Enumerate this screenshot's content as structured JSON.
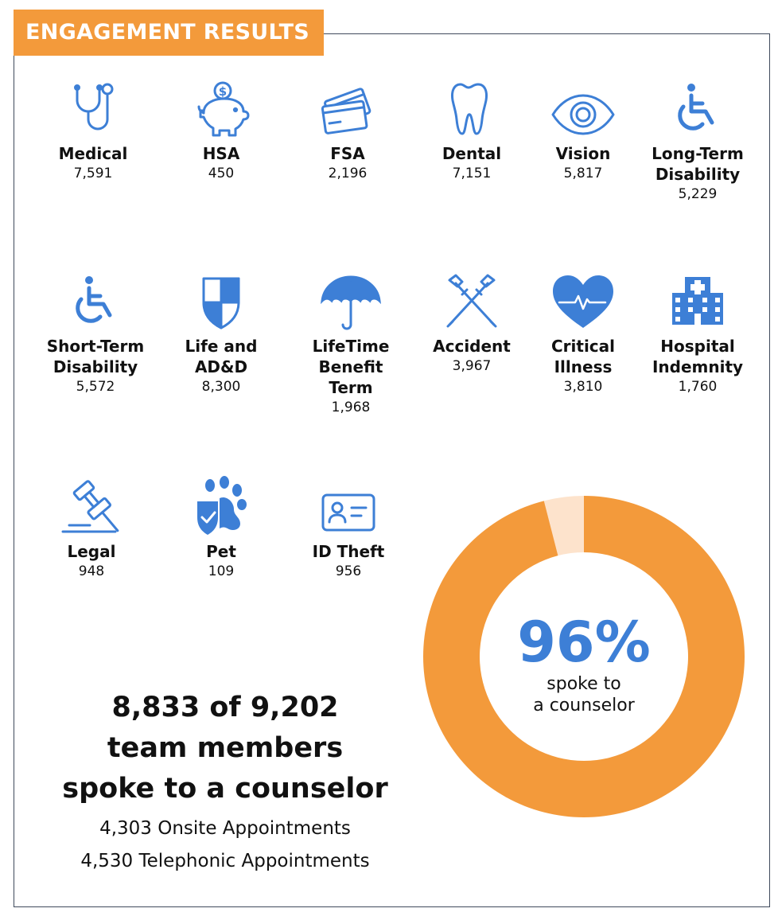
{
  "header": {
    "title": "ENGAGEMENT RESULTS"
  },
  "colors": {
    "accent": "#f39a3b",
    "icon": "#3d7fd6",
    "donut_remainder": "#fde3cc"
  },
  "benefits": [
    {
      "name": "Medical",
      "count": "7,591",
      "icon": "stethoscope-icon"
    },
    {
      "name": "HSA",
      "count": "450",
      "icon": "piggy-bank-icon"
    },
    {
      "name": "FSA",
      "count": "2,196",
      "icon": "credit-cards-icon"
    },
    {
      "name": "Dental",
      "count": "7,151",
      "icon": "tooth-icon"
    },
    {
      "name": "Vision",
      "count": "5,817",
      "icon": "eye-icon"
    },
    {
      "name": "Long-Term\nDisability",
      "count": "5,229",
      "icon": "wheelchair-icon"
    },
    {
      "name": "Short-Term\nDisability",
      "count": "5,572",
      "icon": "wheelchair-icon"
    },
    {
      "name": "Life and\nAD&D",
      "count": "8,300",
      "icon": "shield-icon"
    },
    {
      "name": "LifeTime\nBenefit\nTerm",
      "count": "1,968",
      "icon": "umbrella-icon"
    },
    {
      "name": "Accident",
      "count": "3,967",
      "icon": "crutches-icon"
    },
    {
      "name": "Critical\nIllness",
      "count": "3,810",
      "icon": "heartbeat-icon"
    },
    {
      "name": "Hospital\nIndemnity",
      "count": "1,760",
      "icon": "hospital-icon"
    },
    {
      "name": "Legal",
      "count": "948",
      "icon": "gavel-icon"
    },
    {
      "name": "Pet",
      "count": "109",
      "icon": "paw-shield-icon"
    },
    {
      "name": "ID Theft",
      "count": "956",
      "icon": "id-card-icon"
    }
  ],
  "summary": {
    "headline": "8,833 of 9,202\nteam members\nspoke to a counselor",
    "onsite": "4,303 Onsite Appointments",
    "telephonic": "4,530 Telephonic Appointments"
  },
  "donut": {
    "percent_label": "96%",
    "caption": "spoke to\na counselor",
    "value": 0.96
  }
}
